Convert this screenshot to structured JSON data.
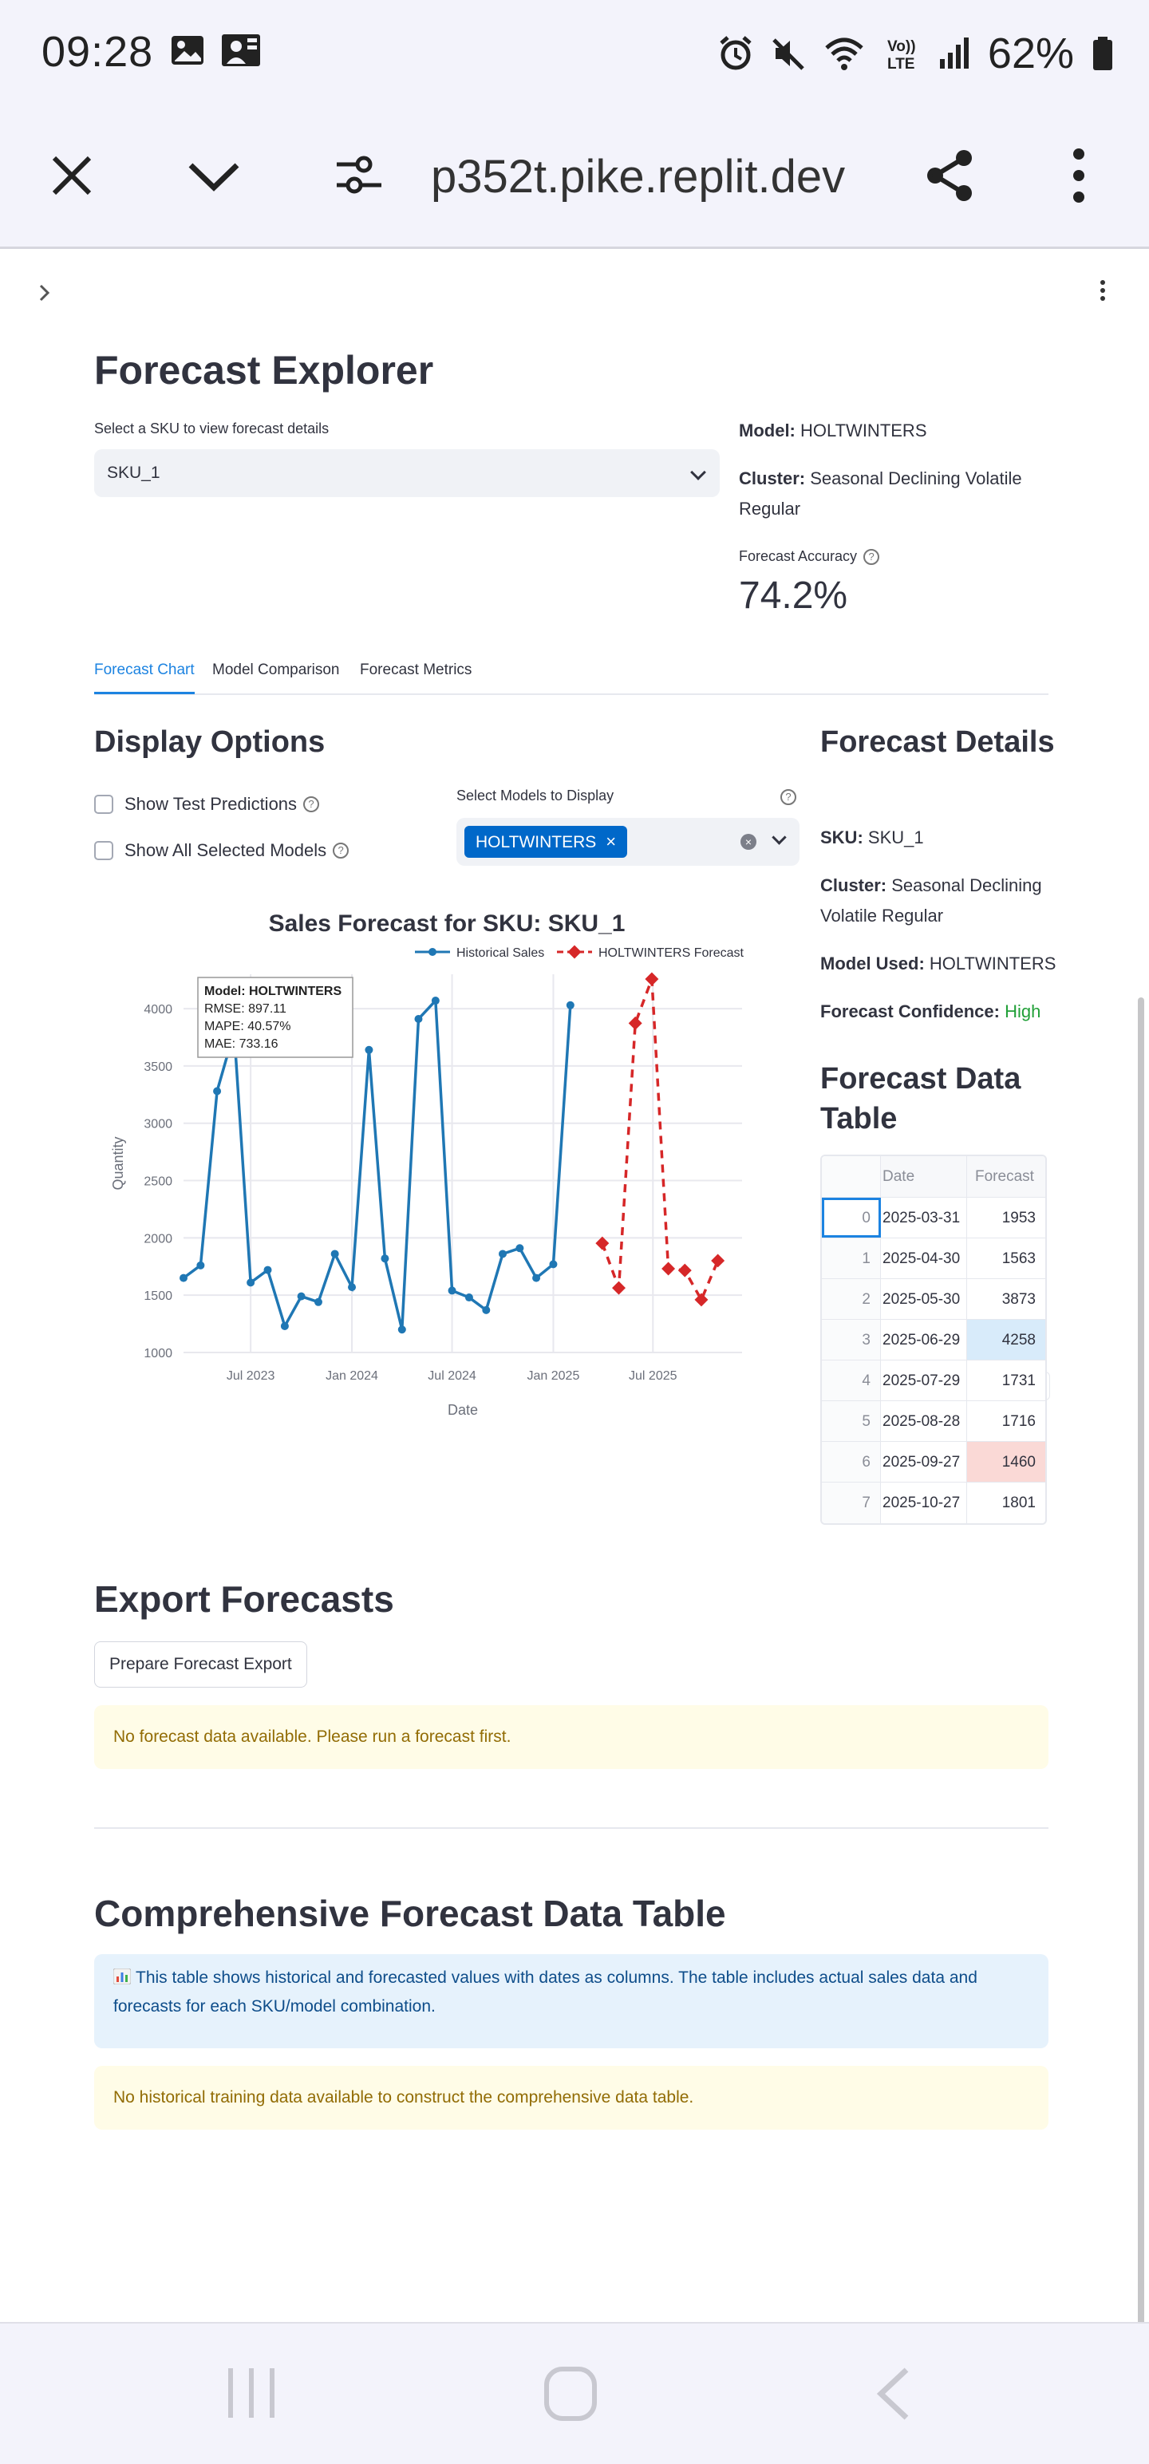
{
  "status_bar": {
    "time": "09:28",
    "battery": "62%",
    "icons": [
      "gallery-icon",
      "notification-icon",
      "alarm-icon",
      "mute-icon",
      "wifi-icon",
      "volte-icon",
      "signal-icon",
      "battery-icon"
    ]
  },
  "browser": {
    "url": "p352t.pike.replit.dev",
    "icons": [
      "close-icon",
      "chevron-down-icon",
      "site-settings-icon",
      "share-icon",
      "more-vert-icon"
    ]
  },
  "page": {
    "title": "Forecast Explorer",
    "sku_select": {
      "label": "Select a SKU to view forecast details",
      "value": "SKU_1"
    },
    "model": {
      "label": "Model:",
      "value": "HOLTWINTERS"
    },
    "cluster": {
      "label": "Cluster:",
      "value_line1": "Seasonal Declining Volatile",
      "value_line2": "Regular"
    },
    "accuracy": {
      "label": "Forecast Accuracy",
      "value": "74.2%"
    },
    "tabs": [
      {
        "label": "Forecast Chart",
        "active": true
      },
      {
        "label": "Model Comparison",
        "active": false
      },
      {
        "label": "Forecast Metrics",
        "active": false
      }
    ],
    "display_options": {
      "title": "Display Options",
      "show_test": "Show Test Predictions",
      "show_all": "Show All Selected Models",
      "models_label": "Select Models to Display",
      "selected_model": "HOLTWINTERS"
    },
    "forecast_details": {
      "title": "Forecast Details",
      "sku_label": "SKU:",
      "sku_value": "SKU_1",
      "cluster_label": "Cluster:",
      "cluster_line1": "Seasonal Declining",
      "cluster_line2": "Volatile Regular",
      "model_label": "Model Used:",
      "model_value": "HOLTWINTERS",
      "confidence_label": "Forecast Confidence:",
      "confidence_value": "High",
      "confidence_color": "#21a038"
    },
    "data_table": {
      "title_line1": "Forecast Data",
      "title_line2": "Table",
      "columns": [
        "",
        "Date",
        "Forecast"
      ],
      "rows": [
        {
          "idx": "0",
          "date": "2025-03-31",
          "forecast": "1953"
        },
        {
          "idx": "1",
          "date": "2025-04-30",
          "forecast": "1563"
        },
        {
          "idx": "2",
          "date": "2025-05-30",
          "forecast": "3873"
        },
        {
          "idx": "3",
          "date": "2025-06-29",
          "forecast": "4258"
        },
        {
          "idx": "4",
          "date": "2025-07-29",
          "forecast": "1731"
        },
        {
          "idx": "5",
          "date": "2025-08-28",
          "forecast": "1716"
        },
        {
          "idx": "6",
          "date": "2025-09-27",
          "forecast": "1460"
        },
        {
          "idx": "7",
          "date": "2025-10-27",
          "forecast": "1801"
        }
      ]
    },
    "export": {
      "title": "Export Forecasts",
      "button": "Prepare Forecast Export",
      "warning": "No forecast data available. Please run a forecast first."
    },
    "comprehensive": {
      "title": "Comprehensive Forecast Data Table",
      "info_icon": "bar-chart-emoji-icon",
      "info_line1": "This table shows historical and forecasted values with dates as columns. The table includes actual sales data and",
      "info_line2": "forecasts for each SKU/model combination.",
      "warning": "No historical training data available to construct the comprehensive data table."
    }
  },
  "chart_data": {
    "type": "line",
    "title": "Sales Forecast for SKU: SKU_1",
    "xlabel": "Date",
    "ylabel": "Quantity",
    "ylim": [
      1000,
      4300
    ],
    "yticks": [
      1000,
      1500,
      2000,
      2500,
      3000,
      3500,
      4000
    ],
    "xticks": [
      "Jul 2023",
      "Jan 2024",
      "Jul 2024",
      "Jan 2025",
      "Jul 2025"
    ],
    "legend_position": "top-right",
    "grid": true,
    "series": [
      {
        "name": "Historical Sales",
        "color": "#1f77b4",
        "style": "solid",
        "x": [
          "2023-03",
          "2023-04",
          "2023-05",
          "2023-06",
          "2023-07",
          "2023-08",
          "2023-09",
          "2023-10",
          "2023-11",
          "2023-12",
          "2024-01",
          "2024-02",
          "2024-03",
          "2024-04",
          "2024-05",
          "2024-06",
          "2024-07",
          "2024-08",
          "2024-09",
          "2024-10",
          "2024-11",
          "2024-12",
          "2025-01",
          "2025-02",
          "2025-03"
        ],
        "values": [
          1650,
          1760,
          3280,
          3800,
          1610,
          1720,
          1230,
          1490,
          1440,
          1860,
          1570,
          3640,
          1820,
          1200,
          3910,
          4070,
          1540,
          1480,
          1370,
          1860,
          1910,
          1650,
          1770,
          4030,
          null
        ]
      },
      {
        "name": "HOLTWINTERS Forecast",
        "color": "#d62728",
        "style": "dashed",
        "x": [
          "2025-03-31",
          "2025-04-30",
          "2025-05-30",
          "2025-06-29",
          "2025-07-29",
          "2025-08-28",
          "2025-09-27",
          "2025-10-27"
        ],
        "values": [
          1953,
          1563,
          3873,
          4258,
          1731,
          1716,
          1460,
          1801
        ]
      }
    ],
    "tooltip": {
      "title": "Model: HOLTWINTERS",
      "rmse": "RMSE: 897.11",
      "mape": "MAPE: 40.57%",
      "mae": "MAE: 733.16"
    }
  },
  "nav": {
    "icons": [
      "recents-icon",
      "home-icon",
      "back-icon"
    ]
  }
}
